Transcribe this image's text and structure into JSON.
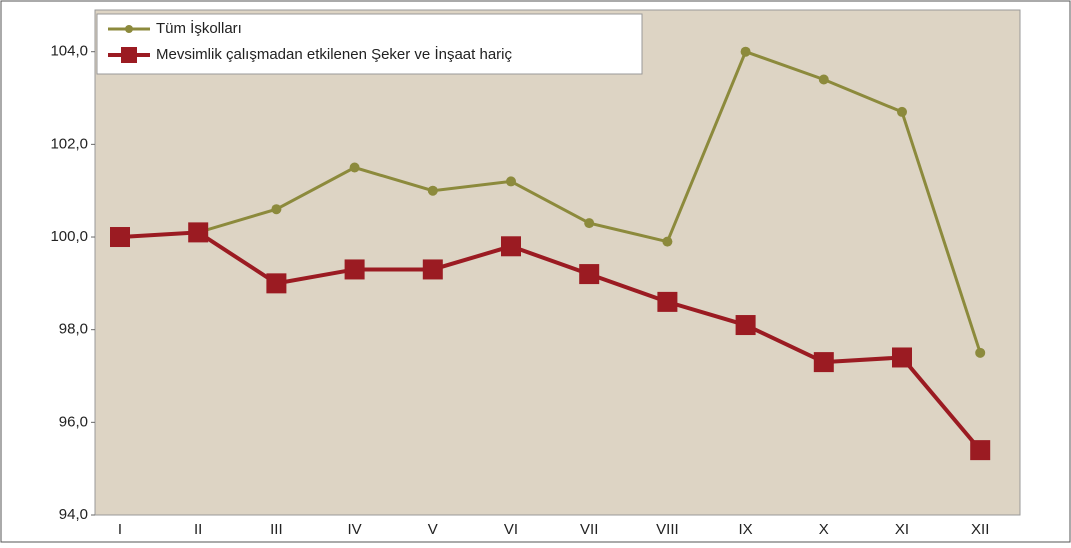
{
  "chart_data": {
    "type": "line",
    "categories": [
      "I",
      "II",
      "III",
      "IV",
      "V",
      "VI",
      "VII",
      "VIII",
      "IX",
      "X",
      "XI",
      "XII"
    ],
    "series": [
      {
        "name": "Tüm İşkolları",
        "color": "#8c8a3c",
        "values": [
          100.0,
          100.1,
          100.6,
          101.5,
          101.0,
          101.2,
          100.3,
          99.9,
          104.0,
          103.4,
          102.7,
          97.5
        ]
      },
      {
        "name": "Mevsimlik çalışmadan etkilenen Şeker ve İnşaat hariç",
        "color": "#9b1b22",
        "values": [
          100.0,
          100.1,
          99.0,
          99.3,
          99.3,
          99.8,
          99.2,
          98.6,
          98.1,
          97.3,
          97.4,
          95.4
        ]
      }
    ],
    "ylim": [
      94,
      104.9
    ],
    "yticks": [
      {
        "value": 94,
        "label": "94,0"
      },
      {
        "value": 96,
        "label": "96,0"
      },
      {
        "value": 98,
        "label": "98,0"
      },
      {
        "value": 100,
        "label": "100,0"
      },
      {
        "value": 102,
        "label": "102,0"
      },
      {
        "value": 104,
        "label": "104,0"
      }
    ],
    "legend": "top-left"
  }
}
